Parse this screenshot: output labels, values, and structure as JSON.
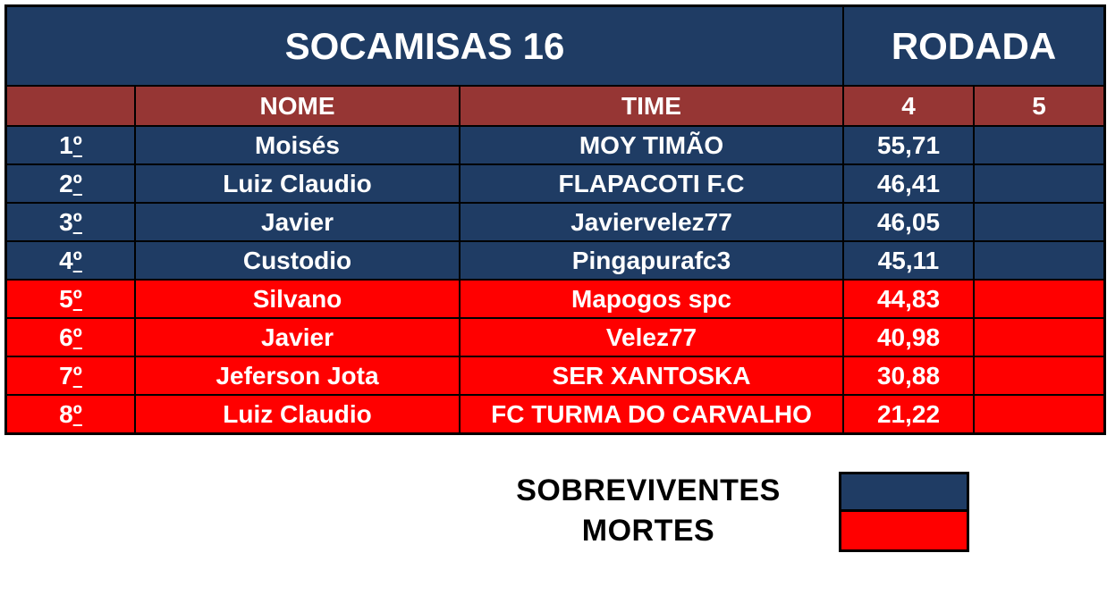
{
  "table": {
    "title": "SOCAMISAS 16",
    "round_header": "RODADA",
    "columns": {
      "rank": "",
      "nome": "NOME",
      "time": "TIME",
      "round4": "4",
      "round5": "5"
    },
    "ordinal_symbol": "º",
    "rows": [
      {
        "rank": "1",
        "status": "survivor",
        "nome": "Moisés",
        "time": "MOY TIMÃO",
        "round4": "55,71",
        "round5": ""
      },
      {
        "rank": "2",
        "status": "survivor",
        "nome": "Luiz Claudio",
        "time": "FLAPACOTI F.C",
        "round4": "46,41",
        "round5": ""
      },
      {
        "rank": "3",
        "status": "survivor",
        "nome": "Javier",
        "time": "Javiervelez77",
        "round4": "46,05",
        "round5": ""
      },
      {
        "rank": "4",
        "status": "survivor",
        "nome": "Custodio",
        "time": "Pingapurafc3",
        "round4": "45,11",
        "round5": ""
      },
      {
        "rank": "5",
        "status": "dead",
        "nome": "Silvano",
        "time": "Mapogos spc",
        "round4": "44,83",
        "round5": ""
      },
      {
        "rank": "6",
        "status": "dead",
        "nome": "Javier",
        "time": "Velez77",
        "round4": "40,98",
        "round5": ""
      },
      {
        "rank": "7",
        "status": "dead",
        "nome": "Jeferson Jota",
        "time": "SER XANTOSKA",
        "round4": "30,88",
        "round5": ""
      },
      {
        "rank": "8",
        "status": "dead",
        "nome": "Luiz Claudio",
        "time": "FC TURMA DO CARVALHO",
        "round4": "21,22",
        "round5": ""
      }
    ]
  },
  "legend": {
    "survivors_label": "SOBREVIVENTES",
    "deaths_label": "MORTES"
  },
  "colors": {
    "survivor": "#1F3C64",
    "dead": "#FF0000",
    "header_band": "#963634",
    "border": "#000000",
    "text": "#FFFFFF"
  }
}
